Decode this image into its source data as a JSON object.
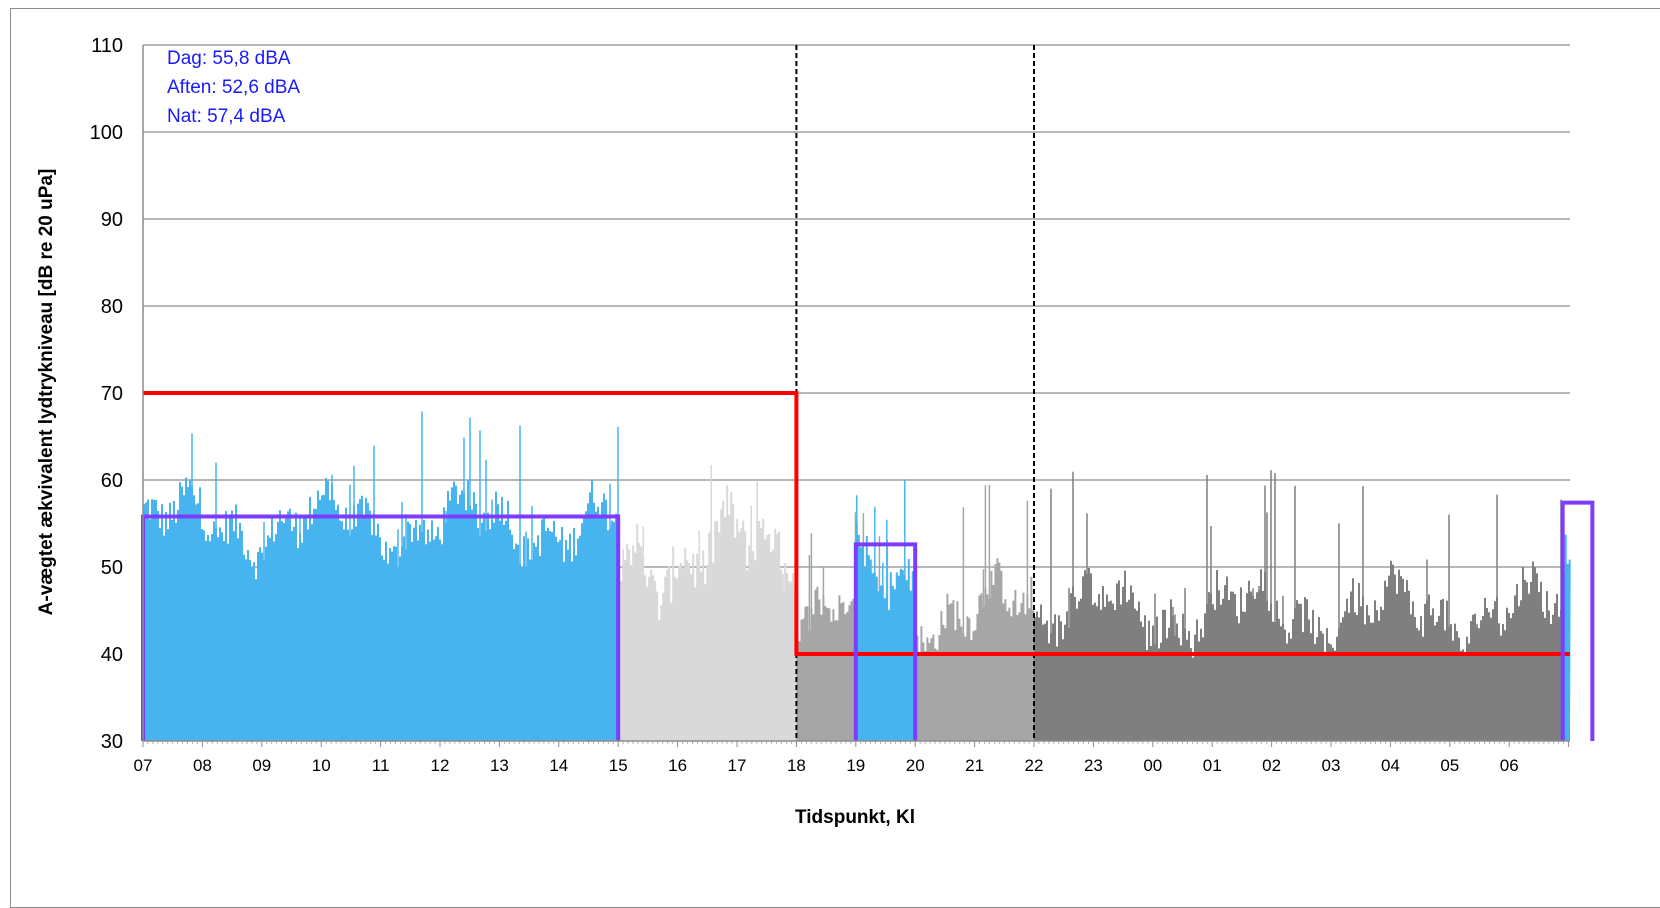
{
  "chart_data": {
    "type": "bar",
    "title": "",
    "xlabel": "Tidspunkt, Kl",
    "ylabel": "A-vægtet ækvivalent lydtrykniveau [dB re 20 uPa]",
    "ylim": [
      30,
      110
    ],
    "y_ticks": [
      30,
      40,
      50,
      60,
      70,
      80,
      90,
      100,
      110
    ],
    "x_ticks": [
      "07",
      "08",
      "09",
      "10",
      "11",
      "12",
      "13",
      "14",
      "15",
      "16",
      "17",
      "18",
      "19",
      "20",
      "21",
      "22",
      "23",
      "00",
      "01",
      "02",
      "03",
      "04",
      "05",
      "06"
    ],
    "grid": "horizontal",
    "annotations": [
      "Dag: 55,8 dBA",
      "Aften: 52,6 dBA",
      "Nat: 57,4 dBA"
    ],
    "vertical_markers": [
      {
        "hour": 18,
        "style": "dashed"
      },
      {
        "hour": 22,
        "style": "dashed"
      }
    ],
    "series": [
      {
        "name": "",
        "role": "measured level",
        "color": "#47b4ef",
        "x_range": [
          7,
          15
        ],
        "approx_level": [
          50,
          60
        ],
        "peak_max": 68
      },
      {
        "name": "",
        "role": "excluded level",
        "color": "#d9d9d9",
        "x_range": [
          15,
          18
        ],
        "approx_level": [
          45,
          58
        ],
        "peak_max": 62
      },
      {
        "name": "",
        "role": "excluded level",
        "color": "#a6a6a6",
        "x_range": [
          18,
          22
        ],
        "approx_level": [
          40,
          50
        ],
        "peak_max": 61
      },
      {
        "name": "",
        "role": "measured level",
        "color": "#47b4ef",
        "x_range": [
          19,
          20
        ],
        "approx_level": [
          45,
          55
        ],
        "peak_max": 61
      },
      {
        "name": "",
        "role": "excluded level",
        "color": "#7f7f7f",
        "x_range": [
          22,
          31
        ],
        "approx_level": [
          40,
          50
        ],
        "peak_max": 62
      },
      {
        "name": "",
        "role": "measured level",
        "color": "#47b4ef",
        "x_range": [
          30.9,
          31.4
        ],
        "approx_level": [
          48,
          58
        ],
        "peak_max": 62.5
      }
    ],
    "limit_line": {
      "color": "#ff0000",
      "segments": [
        {
          "x": [
            7,
            18
          ],
          "y": 70
        },
        {
          "x": [
            18,
            31.4
          ],
          "y": 40
        }
      ]
    },
    "average_boxes": {
      "color": "#7d3cff",
      "boxes": [
        {
          "label": "Dag",
          "x": [
            7,
            15
          ],
          "y": 55.8
        },
        {
          "label": "Aften",
          "x": [
            19,
            20
          ],
          "y": 52.6
        },
        {
          "label": "Nat",
          "x": [
            30.9,
            31.4
          ],
          "y": 57.4
        }
      ]
    }
  }
}
